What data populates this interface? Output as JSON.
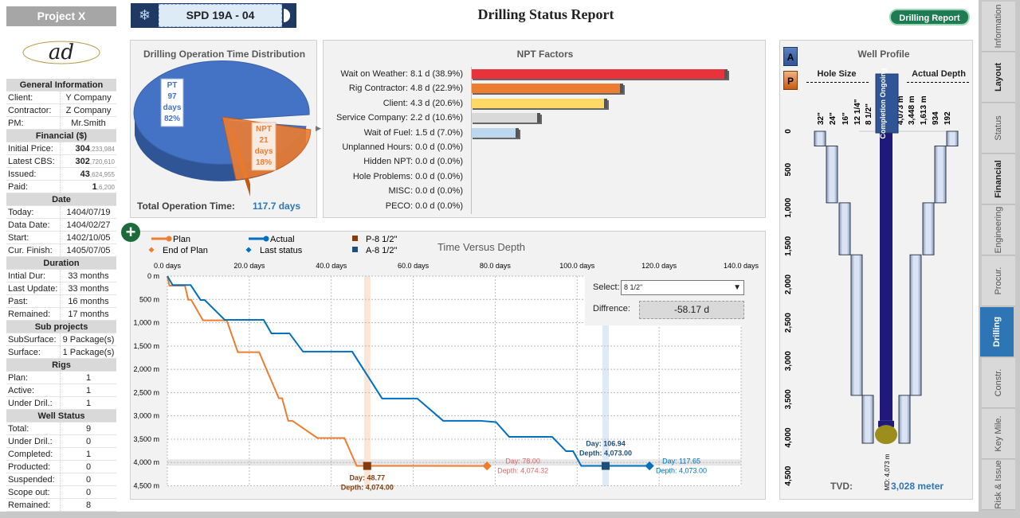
{
  "sidebar": {
    "project": "Project X",
    "logo_text": "ad",
    "sections": [
      {
        "title": "General Information",
        "rows": [
          [
            "Client:",
            "Y Company"
          ],
          [
            "Contractor:",
            "Z Company"
          ],
          [
            "PM:",
            "Mr.Smith"
          ]
        ]
      },
      {
        "title": "Financial ($)",
        "rows": [
          [
            "Initial Price:",
            "304",
            ",233,984"
          ],
          [
            "Latest CBS:",
            "302",
            ",720,610"
          ],
          [
            "Issued:",
            "43",
            ",624,955"
          ],
          [
            "Paid:",
            "1",
            ",6,200"
          ]
        ]
      },
      {
        "title": "Date",
        "rows": [
          [
            "Today:",
            "1404/07/19"
          ],
          [
            "Data Date:",
            "1404/02/27"
          ],
          [
            "Start:",
            "1402/10/05"
          ],
          [
            "Cur. Finish:",
            "1405/07/05"
          ]
        ]
      },
      {
        "title": "Duration",
        "rows": [
          [
            "Intial Dur:",
            "33 months"
          ],
          [
            "Last Update:",
            "33 months"
          ],
          [
            "Past:",
            "16 months"
          ],
          [
            "Remained:",
            "17 months"
          ]
        ]
      },
      {
        "title": "Sub projects",
        "rows": [
          [
            "SubSurface:",
            "9 Package(s)"
          ],
          [
            "Surface:",
            "1 Package(s)"
          ]
        ]
      },
      {
        "title": "Rigs",
        "rows": [
          [
            "Plan:",
            "1"
          ],
          [
            "Active:",
            "1"
          ],
          [
            "Under Dril.:",
            "1"
          ]
        ]
      },
      {
        "title": "Well Status",
        "rows": [
          [
            "Total:",
            "9"
          ],
          [
            "Under Dril.:",
            "0"
          ],
          [
            "Completed:",
            "1"
          ],
          [
            "Producted:",
            "0"
          ],
          [
            "Suspended:",
            "0"
          ],
          [
            "Scope out:",
            "0"
          ],
          [
            "Remained:",
            "8"
          ]
        ]
      }
    ]
  },
  "header": {
    "well": "SPD 19A - 04",
    "title": "Drilling Status Report",
    "report_button": "Drilling Report"
  },
  "pie": {
    "title": "Drilling Operation Time Distribution",
    "total_label": "Total Operation Time:",
    "total_value": "117.7 days",
    "slices": [
      {
        "name": "PT",
        "days": "97",
        "unit": "days",
        "pct": "82%",
        "value": 82,
        "color": "#4472c4"
      },
      {
        "name": "NPT",
        "days": "21",
        "unit": "days",
        "pct": "18%",
        "value": 18,
        "color": "#ed7d31"
      }
    ]
  },
  "npt": {
    "title": "NPT Factors",
    "max_days": 8.1,
    "items": [
      {
        "label": "Wait on Weather: 8.1 d (38.9%)",
        "days": 8.1,
        "color": "#e8323c"
      },
      {
        "label": "Rig Contractor: 4.8 d (22.9%)",
        "days": 4.8,
        "color": "#ed7d31"
      },
      {
        "label": "Client: 4.3 d (20.6%)",
        "days": 4.3,
        "color": "#ffd966"
      },
      {
        "label": "Service Company: 2.2 d (10.6%)",
        "days": 2.2,
        "color": "#d9d9d9"
      },
      {
        "label": "Wait of Fuel: 1.5 d (7.0%)",
        "days": 1.5,
        "color": "#bdd7ee"
      },
      {
        "label": "Unplanned Hours: 0.0 d (0.0%)",
        "days": 0
      },
      {
        "label": "Hidden NPT: 0.0 d (0.0%)",
        "days": 0
      },
      {
        "label": "Hole Problems: 0.0 d (0.0%)",
        "days": 0
      },
      {
        "label": "MISC: 0.0 d (0.0%)",
        "days": 0
      },
      {
        "label": "PECO: 0.0 d (0.0%)",
        "days": 0
      }
    ]
  },
  "chart_data": {
    "type": "line",
    "title": "Time Versus Depth",
    "x_ticks": [
      "0.0 days",
      "20.0 days",
      "40.0 days",
      "60.0 days",
      "80.0 days",
      "100.0 days",
      "120.0 days",
      "140.0 days"
    ],
    "y_ticks": [
      "0 m",
      "500 m",
      "1,000 m",
      "1,500 m",
      "2,000 m",
      "2,500 m",
      "3,000 m",
      "3,500 m",
      "4,000 m",
      "4,500 m"
    ],
    "xlim": [
      0,
      140
    ],
    "ylim": [
      0,
      4500
    ],
    "y_inverted": true,
    "grid": true,
    "legend": "top-left",
    "legend_entries": [
      "Plan",
      "Actual",
      "P-8 1/2\"",
      "End of Plan",
      "Last status",
      "A-8 1/2\""
    ],
    "series": [
      {
        "name": "Plan",
        "color": "#ed7d31",
        "x": [
          0,
          0.5,
          4.3,
          5.1,
          5.8,
          8.7,
          14.5,
          17.2,
          22.4,
          27.2,
          28,
          29.5,
          30.5,
          36.6,
          43.2,
          46.2,
          78
        ],
        "y": [
          0,
          205,
          205,
          507,
          507,
          950,
          950,
          1633,
          1633,
          2622,
          2622,
          3105,
          3105,
          3475,
          3475,
          4074,
          4074.32
        ]
      },
      {
        "name": "Actual",
        "color": "#0070c0",
        "x": [
          0,
          1.3,
          5.7,
          8.1,
          9.1,
          14,
          23.5,
          25.4,
          29.8,
          33.1,
          45.1,
          52.4,
          61,
          67.3,
          76.3,
          80.2,
          83.4,
          93.9,
          97.3,
          99,
          101,
          117.65
        ],
        "y": [
          0,
          193,
          193,
          512,
          512,
          939,
          939,
          1229,
          1229,
          1621,
          1621,
          2627,
          2627,
          3105,
          3105,
          3134,
          3450,
          3450,
          3758,
          3758,
          4073,
          4073
        ]
      }
    ],
    "markers": [
      {
        "name": "P-8 1/2\"",
        "x": 48.77,
        "y": 4074,
        "label_day": "Day: 48.77",
        "label_depth": "Depth: 4,074.00",
        "color": "#843c0c"
      },
      {
        "name": "End of Plan",
        "x": 78,
        "y": 4074.32,
        "label_day": "Day: 78.00",
        "label_depth": "Depth: 4,074.32",
        "color": "#ed7d31"
      },
      {
        "name": "A-8 1/2\"",
        "x": 106.94,
        "y": 4073,
        "label_day": "Day: 106.94",
        "label_depth": "Depth: 4,073.00",
        "color": "#1f4e79"
      },
      {
        "name": "Last status",
        "x": 117.65,
        "y": 4073,
        "label_day": "Day: 117.65",
        "label_depth": "Depth: 4,073.00",
        "color": "#0070c0"
      }
    ],
    "select_label": "Select:",
    "select_value": "8 1/2\"",
    "diff_label": "Diffrence:",
    "diff_value": "-58.17 d"
  },
  "well": {
    "title": "Well Profile",
    "a_label": "A",
    "p_label": "P",
    "hole_size_label": "Hole Size",
    "actual_depth_label": "Actual Depth",
    "status": "Completion Ongoing",
    "hole_sizes": [
      "32\"",
      "24\"",
      "16\"",
      "12 1/4\"",
      "8 1/2\""
    ],
    "actual_depths": [
      "4,073 m",
      "3,448 m",
      "1,613 m",
      "934",
      "192"
    ],
    "casing_depths": [
      192,
      934,
      1613,
      3448,
      4073
    ],
    "depth_ticks": [
      "0",
      "500",
      "1,000",
      "1,500",
      "2,000",
      "2,500",
      "3,000",
      "3,500",
      "4,000",
      "4,500"
    ],
    "md_label": "MD: 4,073 m",
    "tvd_label": "TVD:",
    "tvd_value": "3,028 meter"
  },
  "tabs": [
    {
      "label": "Information"
    },
    {
      "label": "Layout",
      "bold": true
    },
    {
      "label": "Status"
    },
    {
      "label": "Financial",
      "bold": true
    },
    {
      "label": "Engineering"
    },
    {
      "label": "Procur."
    },
    {
      "label": "Drilling",
      "active": true
    },
    {
      "label": "Constr."
    },
    {
      "label": "Key Mile."
    },
    {
      "label": "Risk & Issue"
    }
  ]
}
